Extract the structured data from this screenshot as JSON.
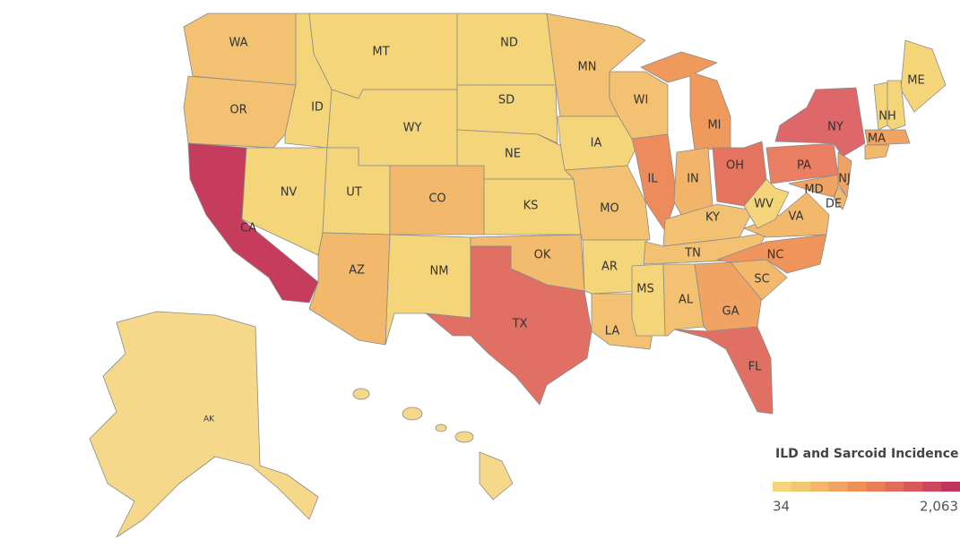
{
  "map": {
    "states": [
      {
        "label": "WA",
        "color": "#f3c172"
      },
      {
        "label": "OR",
        "color": "#f3c172"
      },
      {
        "label": "CA",
        "color": "#c63c5c"
      },
      {
        "label": "ID",
        "color": "#f5d57a"
      },
      {
        "label": "NV",
        "color": "#f5d57a"
      },
      {
        "label": "MT",
        "color": "#f5d57a"
      },
      {
        "label": "WY",
        "color": "#f5d57a"
      },
      {
        "label": "UT",
        "color": "#f5d57a"
      },
      {
        "label": "CO",
        "color": "#f2b96c"
      },
      {
        "label": "AZ",
        "color": "#f2b96c"
      },
      {
        "label": "NM",
        "color": "#f5d57a"
      },
      {
        "label": "ND",
        "color": "#f5d57a"
      },
      {
        "label": "SD",
        "color": "#f5d57a"
      },
      {
        "label": "NE",
        "color": "#f5d57a"
      },
      {
        "label": "KS",
        "color": "#f5d57a"
      },
      {
        "label": "OK",
        "color": "#f2bb6e"
      },
      {
        "label": "TX",
        "color": "#e07064"
      },
      {
        "label": "MN",
        "color": "#f3c172"
      },
      {
        "label": "IA",
        "color": "#f5d57a"
      },
      {
        "label": "MO",
        "color": "#f3c172"
      },
      {
        "label": "AR",
        "color": "#f5d57a"
      },
      {
        "label": "LA",
        "color": "#f3c172"
      },
      {
        "label": "WI",
        "color": "#f3c172"
      },
      {
        "label": "IL",
        "color": "#ee8b5c"
      },
      {
        "label": "MI",
        "color": "#ef9a5c"
      },
      {
        "label": "IN",
        "color": "#f2b36a"
      },
      {
        "label": "OH",
        "color": "#e4735f"
      },
      {
        "label": "KY",
        "color": "#f3c172"
      },
      {
        "label": "TN",
        "color": "#f3c172"
      },
      {
        "label": "MS",
        "color": "#f5d57a"
      },
      {
        "label": "AL",
        "color": "#f3c172"
      },
      {
        "label": "GA",
        "color": "#f0a362"
      },
      {
        "label": "FL",
        "color": "#e07064"
      },
      {
        "label": "SC",
        "color": "#f2b96c"
      },
      {
        "label": "NC",
        "color": "#ef955c"
      },
      {
        "label": "VA",
        "color": "#f2b96c"
      },
      {
        "label": "WV",
        "color": "#f5d57a"
      },
      {
        "label": "PA",
        "color": "#ea7e62"
      },
      {
        "label": "NY",
        "color": "#de676a"
      },
      {
        "label": "NJ",
        "color": "#f0a362"
      },
      {
        "label": "MD",
        "color": "#f0a362"
      },
      {
        "label": "DE",
        "color": "#f2b96c"
      },
      {
        "label": "ME",
        "color": "#f5d57a"
      },
      {
        "label": "NH",
        "color": "#f5d57a"
      },
      {
        "label": "MA",
        "color": "#f0a362"
      },
      {
        "label": "AK",
        "color": "#f5d88a"
      }
    ],
    "legend": {
      "title": "ILD and Sarcoid Incidence",
      "colors": [
        "#f5d57a",
        "#f4c670",
        "#f3b568",
        "#f1a45f",
        "#ee9158",
        "#e97f58",
        "#e26c5a",
        "#d9585b",
        "#ce455c",
        "#c3345c"
      ],
      "min": 34,
      "max": {
        "value": 2063,
        "label": "2,063"
      }
    }
  }
}
